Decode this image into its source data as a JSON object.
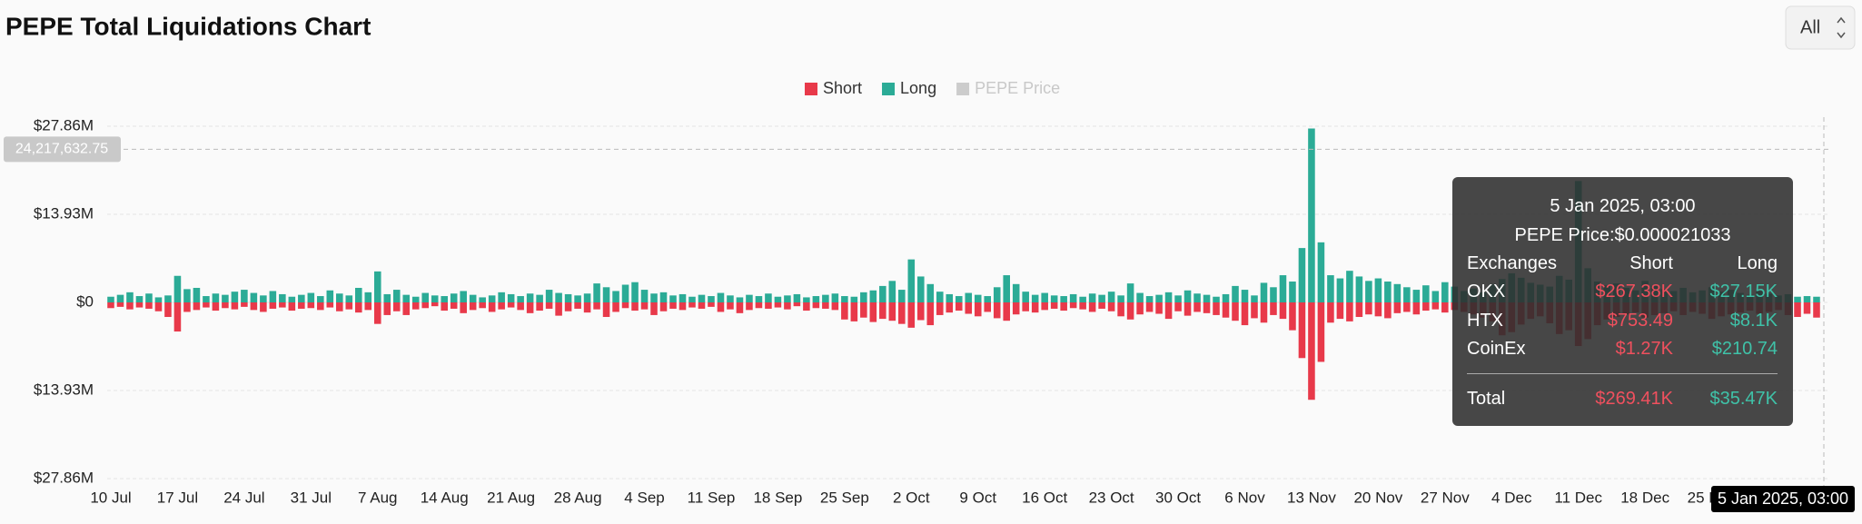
{
  "chart_data": {
    "type": "bar",
    "title": "PEPE Total Liquidations Chart",
    "range_selector": "All",
    "categories": [
      "10 Jul",
      null,
      null,
      null,
      null,
      null,
      null,
      "17 Jul",
      null,
      null,
      null,
      null,
      null,
      null,
      "24 Jul",
      null,
      null,
      null,
      null,
      null,
      null,
      "31 Jul",
      null,
      null,
      null,
      null,
      null,
      null,
      "7 Aug",
      null,
      null,
      null,
      null,
      null,
      null,
      "14 Aug",
      null,
      null,
      null,
      null,
      null,
      null,
      "21 Aug",
      null,
      null,
      null,
      null,
      null,
      null,
      "28 Aug",
      null,
      null,
      null,
      null,
      null,
      null,
      "4 Sep",
      null,
      null,
      null,
      null,
      null,
      null,
      "11 Sep",
      null,
      null,
      null,
      null,
      null,
      null,
      "18 Sep",
      null,
      null,
      null,
      null,
      null,
      null,
      "25 Sep",
      null,
      null,
      null,
      null,
      null,
      null,
      "2 Oct",
      null,
      null,
      null,
      null,
      null,
      null,
      "9 Oct",
      null,
      null,
      null,
      null,
      null,
      null,
      "16 Oct",
      null,
      null,
      null,
      null,
      null,
      null,
      "23 Oct",
      null,
      null,
      null,
      null,
      null,
      null,
      "30 Oct",
      null,
      null,
      null,
      null,
      null,
      null,
      "6 Nov",
      null,
      null,
      null,
      null,
      null,
      null,
      "13 Nov",
      null,
      null,
      null,
      null,
      null,
      null,
      "20 Nov",
      null,
      null,
      null,
      null,
      null,
      null,
      "27 Nov",
      null,
      null,
      null,
      null,
      null,
      null,
      "4 Dec",
      null,
      null,
      null,
      null,
      null,
      null,
      "11 Dec",
      null,
      null,
      null,
      null,
      null,
      null,
      "18 Dec",
      null,
      null,
      null,
      null,
      null,
      null,
      "25 Dec",
      null,
      null,
      null,
      null,
      null,
      null,
      null,
      null,
      null,
      null,
      null
    ],
    "series": [
      {
        "name": "Short",
        "color": "#e8394a",
        "values": [
          -900000,
          -700000,
          -1100000,
          -800000,
          -1000000,
          -1400000,
          -2300000,
          -4600000,
          -1500000,
          -1200000,
          -800000,
          -1300000,
          -900000,
          -1100000,
          -700000,
          -1200000,
          -1500000,
          -1000000,
          -800000,
          -1300000,
          -1000000,
          -900000,
          -1200000,
          -800000,
          -1400000,
          -1100000,
          -1600000,
          -1200000,
          -3400000,
          -2000000,
          -1400000,
          -2000000,
          -1100000,
          -900000,
          -600000,
          -1300000,
          -1000000,
          -1700000,
          -1200000,
          -900000,
          -1500000,
          -1100000,
          -800000,
          -1200000,
          -1700000,
          -1300000,
          -1000000,
          -2100000,
          -1400000,
          -1000000,
          -1600000,
          -1100000,
          -2300000,
          -1500000,
          -900000,
          -1300000,
          -1100000,
          -2000000,
          -1400000,
          -1000000,
          -1200000,
          -800000,
          -1000000,
          -700000,
          -1500000,
          -1100000,
          -1700000,
          -1200000,
          -900000,
          -1000000,
          -800000,
          -1100000,
          -600000,
          -1300000,
          -900000,
          -1000000,
          -1200000,
          -2700000,
          -3000000,
          -2400000,
          -3100000,
          -2600000,
          -2900000,
          -3400000,
          -4000000,
          -2800000,
          -3600000,
          -2000000,
          -1600000,
          -1300000,
          -1800000,
          -2200000,
          -1500000,
          -2500000,
          -2900000,
          -1900000,
          -1400000,
          -1600000,
          -1200000,
          -1000000,
          -1300000,
          -900000,
          -1100000,
          -1500000,
          -1000000,
          -1400000,
          -2200000,
          -2700000,
          -1900000,
          -1500000,
          -1800000,
          -2600000,
          -1400000,
          -2100000,
          -1500000,
          -1700000,
          -2000000,
          -2400000,
          -2900000,
          -3600000,
          -2500000,
          -3200000,
          -2000000,
          -2600000,
          -4400000,
          -8800000,
          -15400000,
          -9400000,
          -3200000,
          -2600000,
          -3000000,
          -2300000,
          -1900000,
          -2200000,
          -2500000,
          -1700000,
          -1500000,
          -1900000,
          -1300000,
          -1100000,
          -1600000,
          -1200000,
          -1500000,
          -1900000,
          -2400000,
          -3000000,
          -5200000,
          -4700000,
          -3500000,
          -2600000,
          -2200000,
          -3300000,
          -5000000,
          -4400000,
          -6900000,
          -5800000,
          -3600000,
          -2700000,
          -2300000,
          -1900000,
          -1600000,
          -2400000,
          -2000000,
          -1700000,
          -1400000,
          -2000000,
          -1500000,
          -1800000,
          -2600000,
          -2200000,
          -1900000,
          -1600000,
          -1300000,
          -1800000,
          -1500000,
          -1200000,
          -2000000,
          -2300000,
          -1800000,
          -2400000
        ]
      },
      {
        "name": "Long",
        "color": "#2bab96",
        "values": [
          900000,
          1200000,
          1600000,
          1000000,
          1400000,
          800000,
          1100000,
          4200000,
          2100000,
          2300000,
          1000000,
          1400000,
          1200000,
          1700000,
          2000000,
          1500000,
          1100000,
          1800000,
          1300000,
          900000,
          1200000,
          1500000,
          1000000,
          1900000,
          1400000,
          1100000,
          2300000,
          1600000,
          4900000,
          1300000,
          2000000,
          1200000,
          900000,
          1500000,
          1100000,
          1000000,
          1400000,
          1800000,
          1200000,
          800000,
          1100000,
          1600000,
          1300000,
          1000000,
          1400000,
          1200000,
          2000000,
          1500000,
          1300000,
          1100000,
          1400000,
          3000000,
          2400000,
          1800000,
          2800000,
          3200000,
          2000000,
          1400000,
          1600000,
          1100000,
          1300000,
          900000,
          1200000,
          1000000,
          1500000,
          1100000,
          800000,
          1200000,
          1000000,
          1400000,
          900000,
          1100000,
          1300000,
          800000,
          1000000,
          1200000,
          1400000,
          1000000,
          900000,
          1600000,
          1900000,
          2600000,
          3400000,
          2000000,
          6800000,
          4100000,
          2900000,
          1700000,
          1300000,
          1000000,
          1500000,
          1200000,
          1000000,
          2400000,
          4300000,
          2900000,
          1700000,
          1200000,
          1500000,
          1100000,
          1000000,
          1300000,
          900000,
          1400000,
          1200000,
          1700000,
          1100000,
          3000000,
          1500000,
          1000000,
          1200000,
          1600000,
          1100000,
          1900000,
          1400000,
          1200000,
          900000,
          1300000,
          2600000,
          2000000,
          1100000,
          3100000,
          2400000,
          4300000,
          3300000,
          8600000,
          27500000,
          9500000,
          4300000,
          3800000,
          5000000,
          4100000,
          3400000,
          3800000,
          3300000,
          2900000,
          2400000,
          2000000,
          2700000,
          1800000,
          3200000,
          2500000,
          1800000,
          2200000,
          1600000,
          2900000,
          3700000,
          4600000,
          3900000,
          3100000,
          2800000,
          2500000,
          4200000,
          3600000,
          19200000,
          5400000,
          3300000,
          2700000,
          3000000,
          2300000,
          1900000,
          3400000,
          2600000,
          2100000,
          1800000,
          2300000,
          1600000,
          1900000,
          2400000,
          1700000,
          2000000,
          1500000,
          1200000,
          1800000,
          1400000,
          1100000,
          1300000,
          900000,
          1000000,
          900000
        ]
      },
      {
        "name": "PEPE Price",
        "color": "#cccccc",
        "visible": false
      }
    ],
    "ylim": [
      -27860000,
      27860000
    ],
    "yticks": [
      {
        "value": -27860000,
        "label": "$27.86M"
      },
      {
        "value": -13930000,
        "label": "$13.93M"
      },
      {
        "value": 0,
        "label": "$0"
      },
      {
        "value": 13930000,
        "label": "$13.93M"
      },
      {
        "value": 27860000,
        "label": "$27.86M"
      }
    ],
    "grid": true,
    "crosshair": {
      "value": 24217632.75,
      "label": "24,217,632.75",
      "x_label": "5 Jan 2025, 03:00"
    },
    "tooltip": {
      "date": "5 Jan 2025, 03:00",
      "price": "PEPE Price:$0.000021033",
      "header": [
        "Exchanges",
        "Short",
        "Long"
      ],
      "rows": [
        [
          "OKX",
          "$267.38K",
          "$27.15K"
        ],
        [
          "HTX",
          "$753.49",
          "$8.1K"
        ],
        [
          "CoinEx",
          "$1.27K",
          "$210.74"
        ]
      ],
      "total": [
        "Total",
        "$269.41K",
        "$35.47K"
      ]
    }
  }
}
